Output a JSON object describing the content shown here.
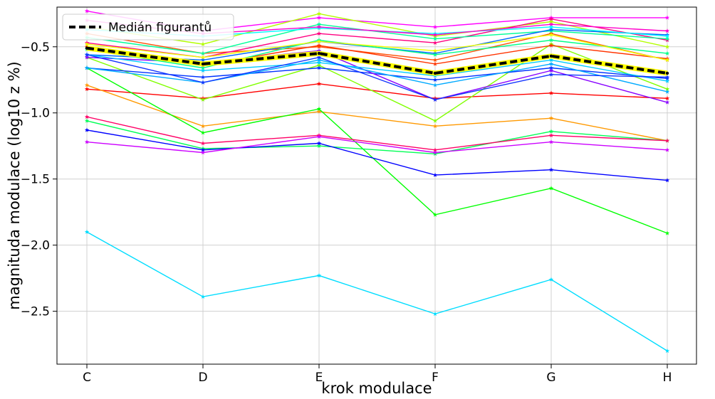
{
  "chart_data": {
    "type": "line",
    "title": "",
    "xlabel": "krok modulace",
    "ylabel": "magnituda modulace (log10 z %)",
    "categories": [
      "C",
      "D",
      "E",
      "F",
      "G",
      "H"
    ],
    "ylim": [
      -2.9,
      -0.2
    ],
    "yticks": [
      -2.5,
      -2.0,
      -1.5,
      -1.0,
      -0.5
    ],
    "ytick_labels": [
      "−2.5",
      "−2.0",
      "−1.5",
      "−1.0",
      "−0.5"
    ],
    "grid": true,
    "legend": {
      "position": "top-left",
      "entries": [
        "Medián figurantů"
      ]
    },
    "median": {
      "name": "Medián figurantů",
      "values": [
        -0.51,
        -0.63,
        -0.55,
        -0.7,
        -0.57,
        -0.7
      ],
      "color": "#000000",
      "halo_color": "#ffff00"
    },
    "participants": [
      {
        "color": "#ff00ff",
        "values": [
          -0.23,
          -0.38,
          -0.28,
          -0.35,
          -0.28,
          -0.28
        ]
      },
      {
        "color": "#b3ff00",
        "values": [
          -0.35,
          -0.48,
          -0.25,
          -0.42,
          -0.31,
          -0.5
        ]
      },
      {
        "color": "#ff4d00",
        "values": [
          -0.4,
          -0.55,
          -0.5,
          -0.6,
          -0.4,
          -0.6
        ]
      },
      {
        "color": "#ff0080",
        "values": [
          -0.47,
          -0.58,
          -0.4,
          -0.47,
          -0.29,
          -0.45
        ]
      },
      {
        "color": "#00ff99",
        "values": [
          -0.43,
          -0.55,
          -0.33,
          -0.44,
          -0.38,
          -0.44
        ]
      },
      {
        "color": "#0066ff",
        "values": [
          -0.56,
          -0.6,
          -0.46,
          -0.55,
          -0.37,
          -0.41
        ]
      },
      {
        "color": "#00ffff",
        "values": [
          -0.37,
          -0.42,
          -0.36,
          -0.4,
          -0.35,
          -0.42
        ]
      },
      {
        "color": "#ff0000",
        "values": [
          -0.82,
          -0.89,
          -0.78,
          -0.89,
          -0.85,
          -0.89
        ]
      },
      {
        "color": "#ff9900",
        "values": [
          -0.79,
          -1.1,
          -0.99,
          -1.1,
          -1.04,
          -1.21
        ]
      },
      {
        "color": "#00ff00",
        "values": [
          -0.66,
          -1.15,
          -0.97,
          -1.77,
          -1.57,
          -1.91
        ]
      },
      {
        "color": "#80ff00",
        "values": [
          -0.58,
          -0.9,
          -0.64,
          -1.06,
          -0.48,
          -0.82
        ]
      },
      {
        "color": "#00ff55",
        "values": [
          -1.06,
          -1.27,
          -1.25,
          -1.31,
          -1.14,
          -1.21
        ]
      },
      {
        "color": "#ff0066",
        "values": [
          -1.03,
          -1.23,
          -1.17,
          -1.28,
          -1.17,
          -1.21
        ]
      },
      {
        "color": "#0000ff",
        "values": [
          -1.13,
          -1.28,
          -1.23,
          -1.47,
          -1.43,
          -1.51
        ]
      },
      {
        "color": "#cc00ff",
        "values": [
          -1.22,
          -1.3,
          -1.18,
          -1.3,
          -1.22,
          -1.28
        ]
      },
      {
        "color": "#00ddff",
        "values": [
          -1.9,
          -2.39,
          -2.23,
          -2.52,
          -2.26,
          -2.8
        ]
      },
      {
        "color": "#0033ff",
        "values": [
          -0.66,
          -0.73,
          -0.66,
          -0.75,
          -0.66,
          -0.74
        ]
      },
      {
        "color": "#8800ff",
        "values": [
          -0.58,
          -0.62,
          -0.53,
          -0.9,
          -0.68,
          -0.92
        ]
      },
      {
        "color": "#00aaff",
        "values": [
          -0.66,
          -0.77,
          -0.6,
          -0.79,
          -0.63,
          -0.84
        ]
      },
      {
        "color": "#00ccff",
        "values": [
          -0.56,
          -0.68,
          -0.62,
          -0.72,
          -0.6,
          -0.76
        ]
      },
      {
        "color": "#1133ff",
        "values": [
          -0.56,
          -0.77,
          -0.58,
          -0.9,
          -0.71,
          -0.73
        ]
      },
      {
        "color": "#ff3300",
        "values": [
          -0.5,
          -0.64,
          -0.49,
          -0.63,
          -0.49,
          -0.59
        ]
      },
      {
        "color": "#00ff88",
        "values": [
          -0.52,
          -0.66,
          -0.45,
          -0.56,
          -0.45,
          -0.55
        ]
      },
      {
        "color": "#eeff00",
        "values": [
          -0.48,
          -0.58,
          -0.46,
          -0.53,
          -0.41,
          -0.6
        ]
      },
      {
        "color": "#ff00cc",
        "values": [
          -0.3,
          -0.4,
          -0.35,
          -0.41,
          -0.33,
          -0.38
        ]
      }
    ]
  }
}
